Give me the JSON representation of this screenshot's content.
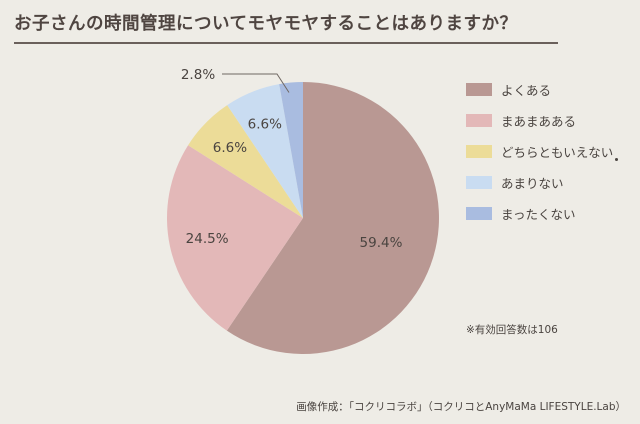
{
  "title": "お子さんの時間管理についてモヤモヤすることはありますか？",
  "note": "※有効回答数は106",
  "credit": "画像作成：「コクリコラボ」（コクリコとAnyMaMa LIFESTYLE.Lab）",
  "chart_data": {
    "type": "pie",
    "unit": "%",
    "legend_position": "right",
    "slices": [
      {
        "label": "よくある",
        "value": 59.4,
        "display": "59.4%",
        "color": "#b99893"
      },
      {
        "label": "まあまあある",
        "value": 24.5,
        "display": "24.5%",
        "color": "#e3b8b8"
      },
      {
        "label": "どちらともいえない",
        "value": 6.6,
        "display": "6.6%",
        "color": "#ecdc98"
      },
      {
        "label": "あまりない",
        "value": 6.6,
        "display": "6.6%",
        "color": "#c9dcf1"
      },
      {
        "label": "まったくない",
        "value": 2.8,
        "display": "2.8%",
        "color": "#a9bce0"
      }
    ]
  }
}
